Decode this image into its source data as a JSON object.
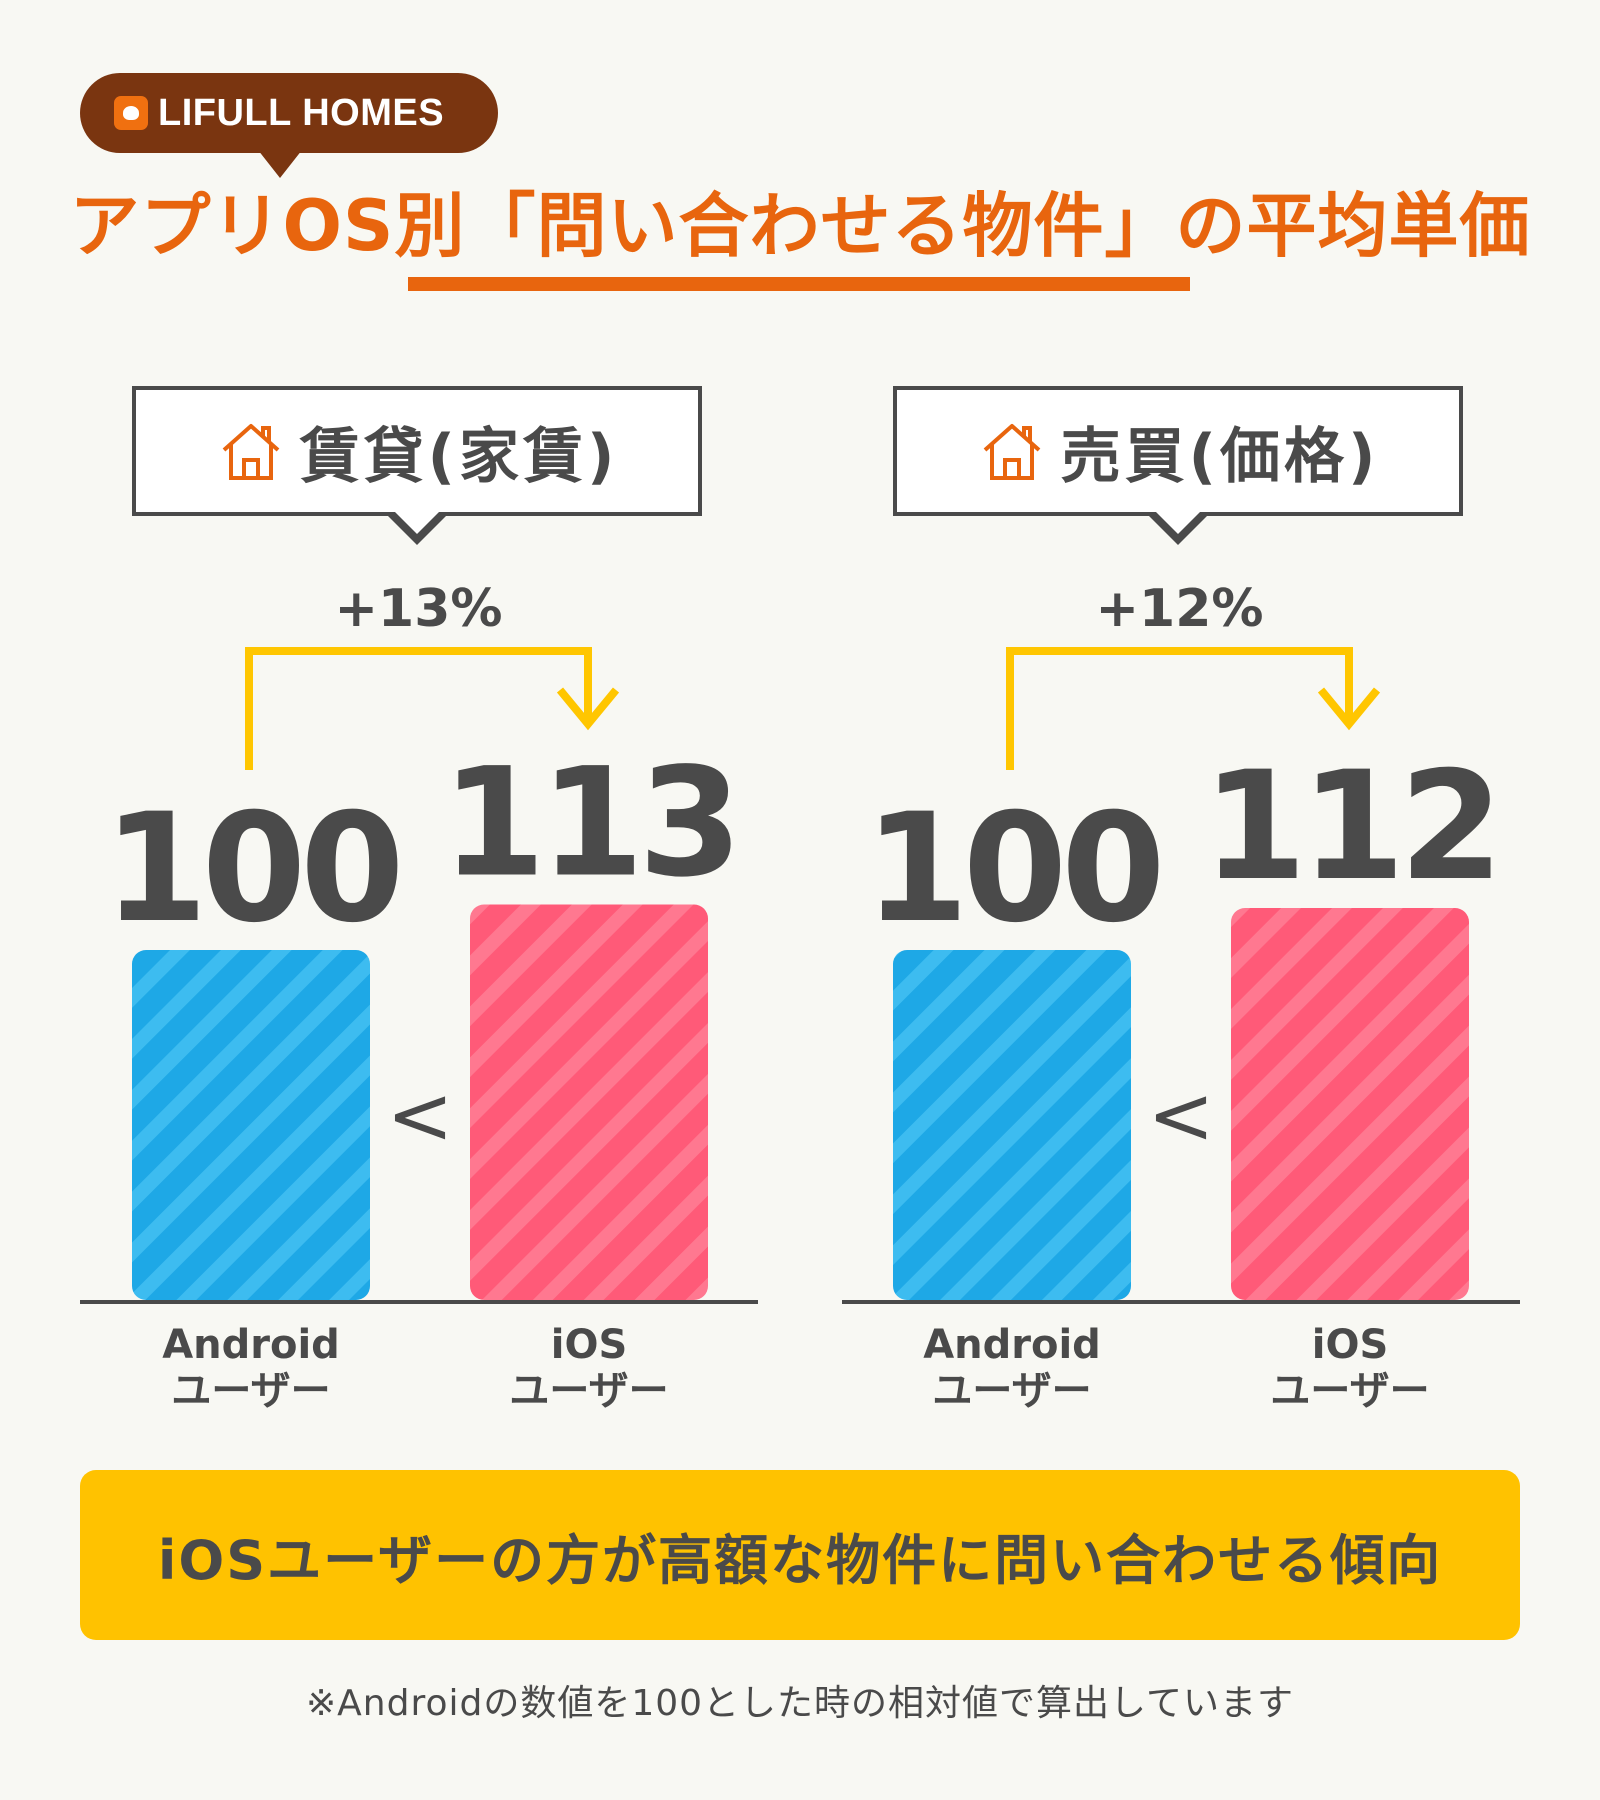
{
  "brand": {
    "name": "LIFULL HOMES",
    "colors": {
      "brand_bg": "#7a3510",
      "accent": "#e8650e"
    }
  },
  "title": "アプリOS別「問い合わせる物件」の平均単価",
  "chart_data": [
    {
      "type": "bar",
      "title": "賃貸(家賃)",
      "categories": [
        "Android ユーザー",
        "iOS ユーザー"
      ],
      "category_lines": [
        [
          "Android",
          "ユーザー"
        ],
        [
          "iOS",
          "ユーザー"
        ]
      ],
      "values": [
        100,
        113
      ],
      "value_labels": [
        "100",
        "113"
      ],
      "change_label": "+13%",
      "comparison": "<",
      "colors": [
        "#1ea8e6",
        "#ff5a78"
      ]
    },
    {
      "type": "bar",
      "title": "売買(価格)",
      "categories": [
        "Android ユーザー",
        "iOS ユーザー"
      ],
      "category_lines": [
        [
          "Android",
          "ユーザー"
        ],
        [
          "iOS",
          "ユーザー"
        ]
      ],
      "values": [
        100,
        112
      ],
      "value_labels": [
        "100",
        "112"
      ],
      "change_label": "+12%",
      "comparison": "<",
      "colors": [
        "#1ea8e6",
        "#ff5a78"
      ]
    }
  ],
  "conclusion": "iOSユーザーの方が高額な物件に問い合わせる傾向",
  "footnote": "※Androidの数値を100とした時の相対値で算出しています",
  "icons": {
    "section": "house-icon"
  }
}
